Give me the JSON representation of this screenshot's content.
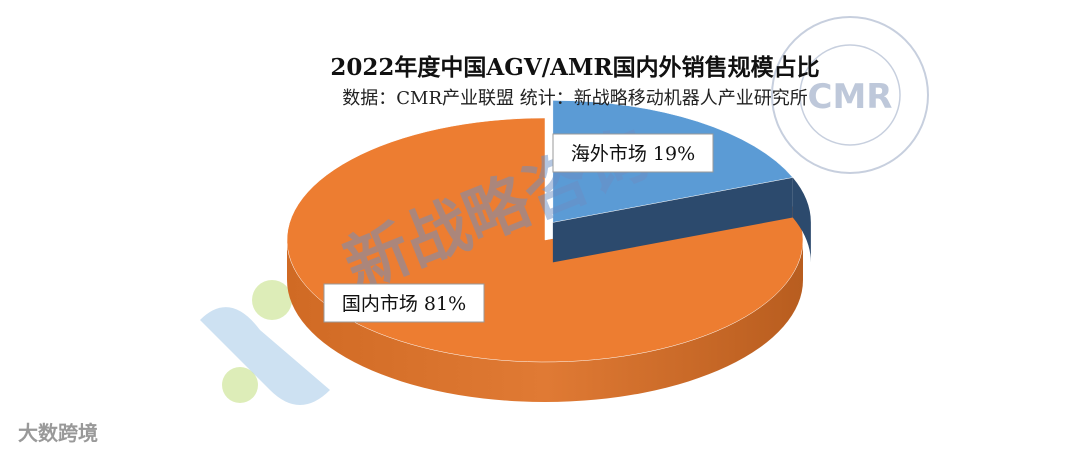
{
  "chart_data": {
    "type": "pie",
    "title": "2022年度中国AGV/AMR国内外销售规模占比",
    "subtitle": "数据：CMR产业联盟 统计：新战略移动机器人产业研究所",
    "categories": [
      "海外市场",
      "国内市场"
    ],
    "values": [
      19,
      81
    ],
    "value_labels": [
      "19%",
      "81%"
    ],
    "colors": [
      "#5B9BD5",
      "#ED7D31"
    ],
    "watermark": "新战略咨询",
    "logo": "CMR",
    "footer": "大数跨境"
  }
}
